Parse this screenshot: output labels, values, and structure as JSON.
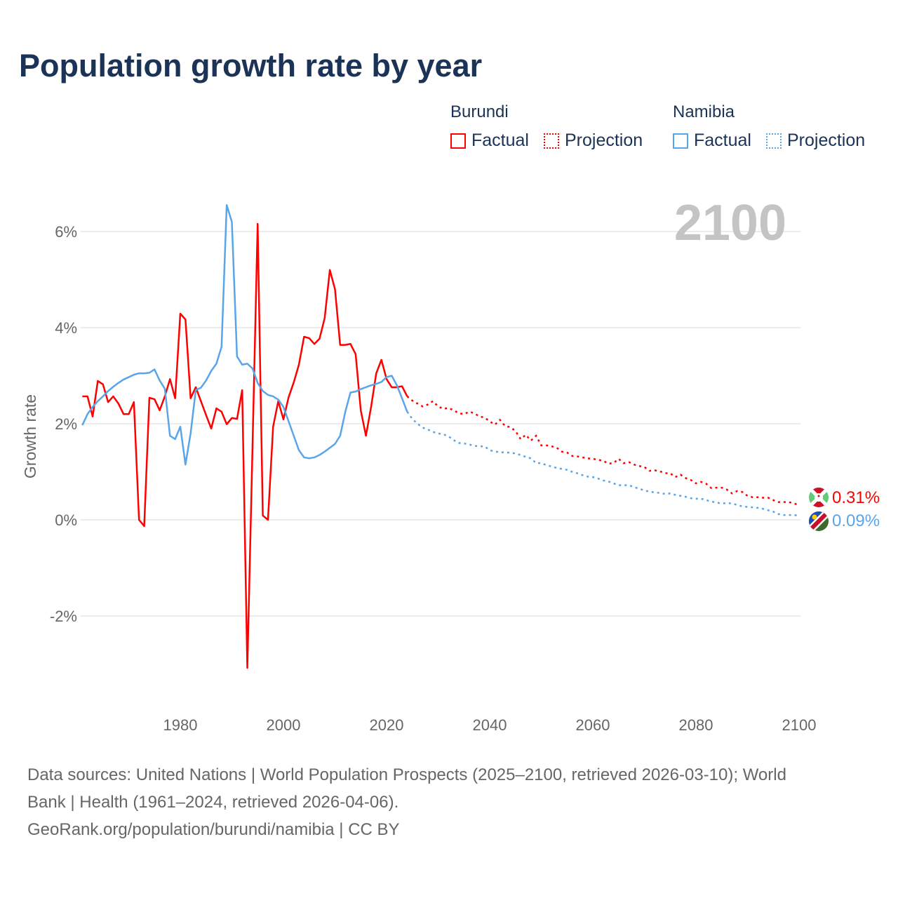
{
  "title": "Population growth rate by year",
  "legend": {
    "groups": [
      {
        "name": "Burundi",
        "factual": "Factual",
        "projection": "Projection",
        "color": "#ff0000"
      },
      {
        "name": "Namibia",
        "factual": "Factual",
        "projection": "Projection",
        "color": "#5aa5e8"
      }
    ]
  },
  "footer": {
    "line1": "Data sources: United Nations | World Population Prospects (2025–2100, retrieved 2026-03-10); World",
    "line2": "Bank | Health (1961–2024, retrieved 2026-04-06).",
    "line3": "GeoRank.org/population/burundi/namibia | CC BY"
  },
  "chart_data": {
    "type": "line",
    "title": "Population growth rate by year",
    "ylabel": "Growth rate",
    "xlabel": "",
    "current_year_label": "2100",
    "xlim": [
      1961,
      2100
    ],
    "ylim": [
      -3.3,
      7
    ],
    "y_ticks": [
      6,
      4,
      2,
      0,
      -2
    ],
    "y_tick_labels": [
      "6%",
      "4%",
      "2%",
      "0%",
      "-2%"
    ],
    "x_ticks": [
      1980,
      2000,
      2020,
      2040,
      2060,
      2080,
      2100
    ],
    "x_tick_labels": [
      "1980",
      "2000",
      "2020",
      "2040",
      "2060",
      "2080",
      "2100"
    ],
    "grid": true,
    "legend_position": "top-right",
    "series": [
      {
        "name": "Burundi",
        "color": "#ff0000",
        "end_label": "0.31%",
        "factual_start": 1961,
        "factual": [
          2.57,
          2.57,
          2.15,
          2.89,
          2.82,
          2.45,
          2.57,
          2.42,
          2.2,
          2.2,
          2.45,
          0.0,
          -0.13,
          2.54,
          2.51,
          2.28,
          2.57,
          2.93,
          2.53,
          4.29,
          4.17,
          2.53,
          2.76,
          2.47,
          2.18,
          1.9,
          2.32,
          2.25,
          1.99,
          2.12,
          2.1,
          2.7,
          -3.08,
          1.5,
          6.16,
          0.09,
          0.0,
          1.94,
          2.47,
          2.09,
          2.55,
          2.86,
          3.23,
          3.81,
          3.78,
          3.66,
          3.77,
          4.2,
          5.2,
          4.8,
          3.64,
          3.64,
          3.66,
          3.45,
          2.28,
          1.75,
          2.35,
          3.05,
          3.33,
          2.93,
          2.76,
          2.76,
          2.78,
          2.57
        ],
        "projection_start": 2025,
        "projection": [
          2.48,
          2.42,
          2.36,
          2.4,
          2.47,
          2.36,
          2.31,
          2.33,
          2.28,
          2.22,
          2.2,
          2.25,
          2.22,
          2.15,
          2.13,
          2.05,
          1.98,
          2.08,
          1.95,
          1.93,
          1.85,
          1.68,
          1.77,
          1.65,
          1.75,
          1.55,
          1.55,
          1.53,
          1.5,
          1.42,
          1.4,
          1.33,
          1.32,
          1.3,
          1.28,
          1.27,
          1.25,
          1.23,
          1.17,
          1.18,
          1.27,
          1.18,
          1.2,
          1.15,
          1.12,
          1.1,
          1.02,
          1.03,
          1.01,
          0.97,
          0.97,
          0.89,
          0.94,
          0.87,
          0.83,
          0.76,
          0.79,
          0.75,
          0.66,
          0.67,
          0.67,
          0.63,
          0.55,
          0.6,
          0.58,
          0.5,
          0.47,
          0.47,
          0.46,
          0.46,
          0.41,
          0.37,
          0.37,
          0.37,
          0.34,
          0.31
        ]
      },
      {
        "name": "Namibia",
        "color": "#5aa5e8",
        "end_label": "0.09%",
        "factual_start": 1961,
        "factual": [
          1.97,
          2.2,
          2.35,
          2.47,
          2.57,
          2.68,
          2.77,
          2.85,
          2.92,
          2.97,
          3.02,
          3.05,
          3.05,
          3.06,
          3.13,
          2.9,
          2.73,
          1.75,
          1.68,
          1.94,
          1.15,
          1.8,
          2.7,
          2.75,
          2.9,
          3.1,
          3.25,
          3.6,
          6.55,
          6.2,
          3.4,
          3.23,
          3.25,
          3.15,
          2.85,
          2.68,
          2.6,
          2.57,
          2.5,
          2.35,
          2.05,
          1.75,
          1.45,
          1.3,
          1.28,
          1.3,
          1.35,
          1.42,
          1.5,
          1.58,
          1.75,
          2.25,
          2.65,
          2.67,
          2.72,
          2.76,
          2.8,
          2.83,
          2.87,
          2.97,
          3.0,
          2.8,
          2.53,
          2.25
        ],
        "projection_start": 2025,
        "projection": [
          2.1,
          2.0,
          1.92,
          1.88,
          1.83,
          1.8,
          1.78,
          1.74,
          1.66,
          1.6,
          1.59,
          1.57,
          1.54,
          1.53,
          1.53,
          1.45,
          1.42,
          1.41,
          1.4,
          1.4,
          1.38,
          1.35,
          1.31,
          1.28,
          1.18,
          1.18,
          1.14,
          1.11,
          1.08,
          1.06,
          1.04,
          1.0,
          0.97,
          0.93,
          0.9,
          0.89,
          0.86,
          0.82,
          0.8,
          0.76,
          0.72,
          0.72,
          0.72,
          0.68,
          0.65,
          0.61,
          0.59,
          0.57,
          0.56,
          0.54,
          0.55,
          0.52,
          0.5,
          0.48,
          0.45,
          0.44,
          0.44,
          0.41,
          0.38,
          0.36,
          0.34,
          0.35,
          0.34,
          0.31,
          0.28,
          0.27,
          0.26,
          0.25,
          0.23,
          0.2,
          0.17,
          0.12,
          0.1,
          0.1,
          0.1,
          0.09
        ]
      }
    ]
  }
}
